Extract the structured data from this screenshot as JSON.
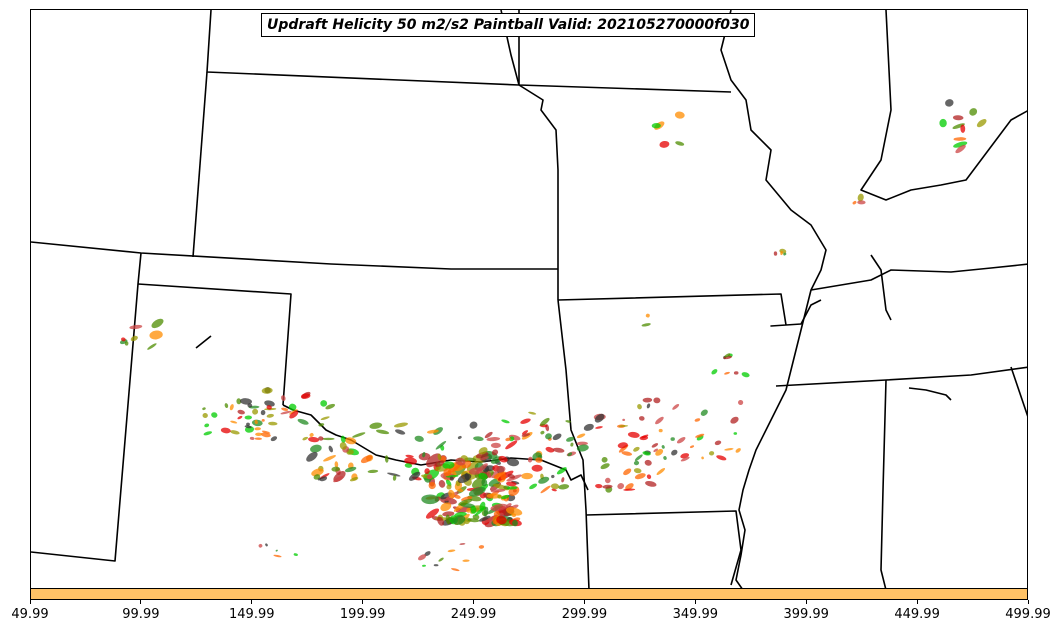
{
  "title": "Updraft Helicity 50 m2/s2 Paintball Valid: 202105270000f030",
  "colorbar": {
    "color": "#ffc266",
    "ticks": [
      "49.99",
      "99.99",
      "149.99",
      "199.99",
      "249.99",
      "299.99",
      "349.99",
      "399.99",
      "449.99",
      "499.99"
    ]
  },
  "member_colors": [
    "#e60000",
    "#b22222",
    "#ff8c00",
    "#999900",
    "#4d8c00",
    "#00cc00",
    "#228b22",
    "#333333",
    "#cc4444",
    "#ff6600"
  ]
}
